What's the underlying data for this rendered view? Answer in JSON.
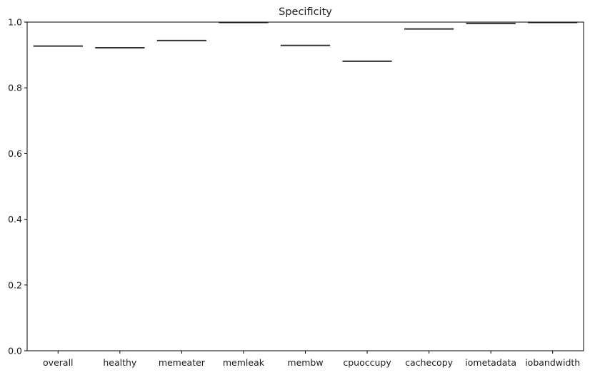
{
  "chart_data": {
    "type": "box",
    "title": "Specificity",
    "xlabel": "",
    "ylabel": "",
    "categories": [
      "overall",
      "healthy",
      "memeater",
      "memleak",
      "membw",
      "cpuoccupy",
      "cachecopy",
      "iometadata",
      "iobandwidth"
    ],
    "values": [
      0.927,
      0.922,
      0.944,
      1.0,
      0.929,
      0.881,
      0.979,
      0.996,
      1.0
    ],
    "ylim": [
      0,
      1.0
    ],
    "yticks": [
      "0.0",
      "0.2",
      "0.4",
      "0.6",
      "0.8",
      "1.0"
    ],
    "grid": false,
    "legend": "none",
    "colors": {
      "median_line": "#333333",
      "axis": "#000000"
    }
  }
}
